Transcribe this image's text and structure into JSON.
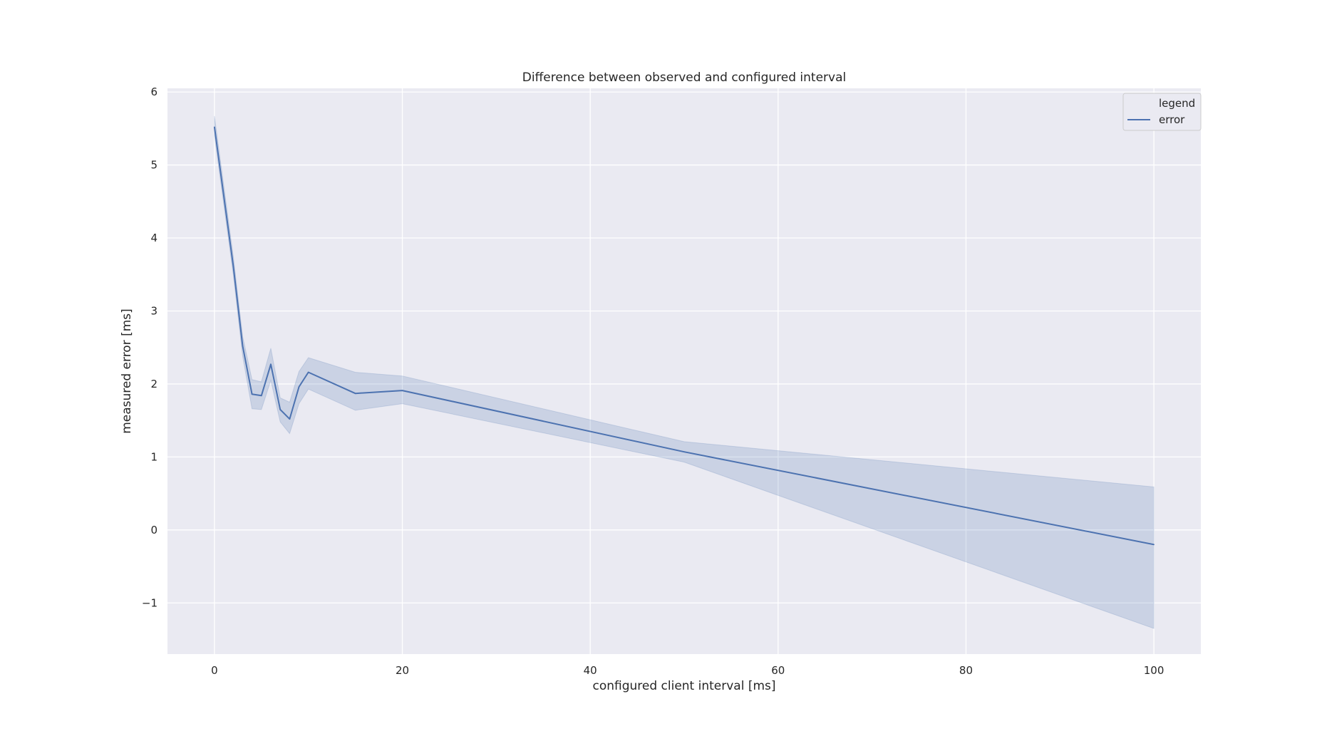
{
  "chart_data": {
    "type": "line",
    "title": "Difference between observed and configured interval",
    "xlabel": "configured client interval [ms]",
    "ylabel": "measured error [ms]",
    "xlim": [
      -5,
      105
    ],
    "ylim": [
      -1.7,
      6.05
    ],
    "xticks": [
      0,
      20,
      40,
      60,
      80,
      100
    ],
    "yticks": [
      -1,
      0,
      1,
      2,
      3,
      4,
      5,
      6
    ],
    "xtick_labels": [
      "0",
      "20",
      "40",
      "60",
      "80",
      "100"
    ],
    "ytick_labels": [
      "−1",
      "0",
      "1",
      "2",
      "3",
      "4",
      "5",
      "6"
    ],
    "grid": true,
    "legend": {
      "title": "legend",
      "placement": "top-right"
    },
    "colors": {
      "line": "#4c72b0",
      "band": "#4c72b0",
      "plot_bg": "#eaeaf2",
      "grid": "#ffffff"
    },
    "series": [
      {
        "name": "error",
        "x": [
          0,
          2,
          3,
          4,
          5,
          6,
          7,
          8,
          9,
          10,
          15,
          20,
          50,
          100
        ],
        "y": [
          5.52,
          3.62,
          2.52,
          1.86,
          1.84,
          2.27,
          1.65,
          1.52,
          1.96,
          2.16,
          1.87,
          1.91,
          1.07,
          -0.2
        ],
        "lower": [
          5.4,
          3.5,
          2.38,
          1.66,
          1.65,
          2.05,
          1.48,
          1.32,
          1.73,
          1.93,
          1.64,
          1.73,
          0.93,
          -1.35
        ],
        "upper": [
          5.67,
          3.75,
          2.65,
          2.06,
          2.03,
          2.49,
          1.81,
          1.75,
          2.17,
          2.36,
          2.16,
          2.11,
          1.21,
          0.59
        ]
      }
    ]
  }
}
